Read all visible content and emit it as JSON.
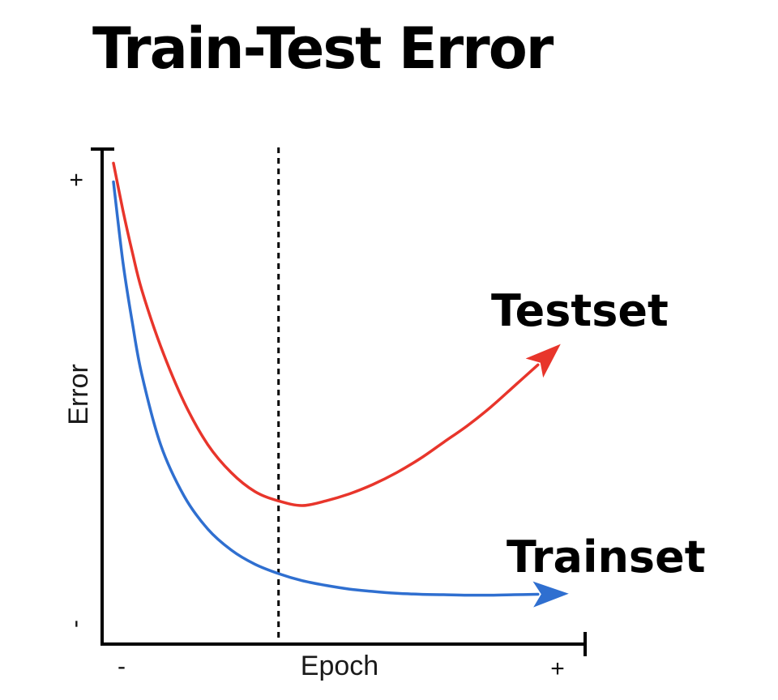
{
  "title": "Train-Test Error",
  "chart_data": {
    "type": "line",
    "title": "Train-Test Error",
    "xlabel": "Epoch",
    "ylabel": "Error",
    "x_ticks": [
      "-",
      "+"
    ],
    "y_ticks": [
      "-",
      "+"
    ],
    "grid": false,
    "series": [
      {
        "name": "Testset",
        "color": "#e8352b",
        "x": [
          0,
          2,
          4,
          6,
          10,
          15,
          20,
          25,
          30,
          35,
          40,
          45,
          50,
          55,
          60,
          65,
          70,
          75,
          80,
          85,
          90
        ],
        "y": [
          97,
          87,
          78,
          70,
          58,
          46,
          37,
          31,
          27,
          25,
          24,
          25,
          26.5,
          28.5,
          31,
          34,
          37.5,
          41,
          45,
          49.5,
          54
        ],
        "arrow_end": true
      },
      {
        "name": "Trainset",
        "color": "#2f6fd0",
        "x": [
          0,
          2,
          4,
          6,
          10,
          15,
          20,
          25,
          30,
          35,
          40,
          45,
          50,
          55,
          60,
          65,
          70,
          75,
          80,
          85,
          90
        ],
        "y": [
          93,
          76,
          63,
          52,
          37,
          26,
          19,
          14.5,
          11.5,
          9.5,
          8,
          7,
          6.2,
          5.7,
          5.3,
          5.1,
          5,
          4.9,
          4.9,
          5,
          5.1
        ],
        "arrow_end": true
      }
    ],
    "vertical_marker": {
      "x": 35,
      "style": "dashed",
      "color": "#000000"
    }
  }
}
